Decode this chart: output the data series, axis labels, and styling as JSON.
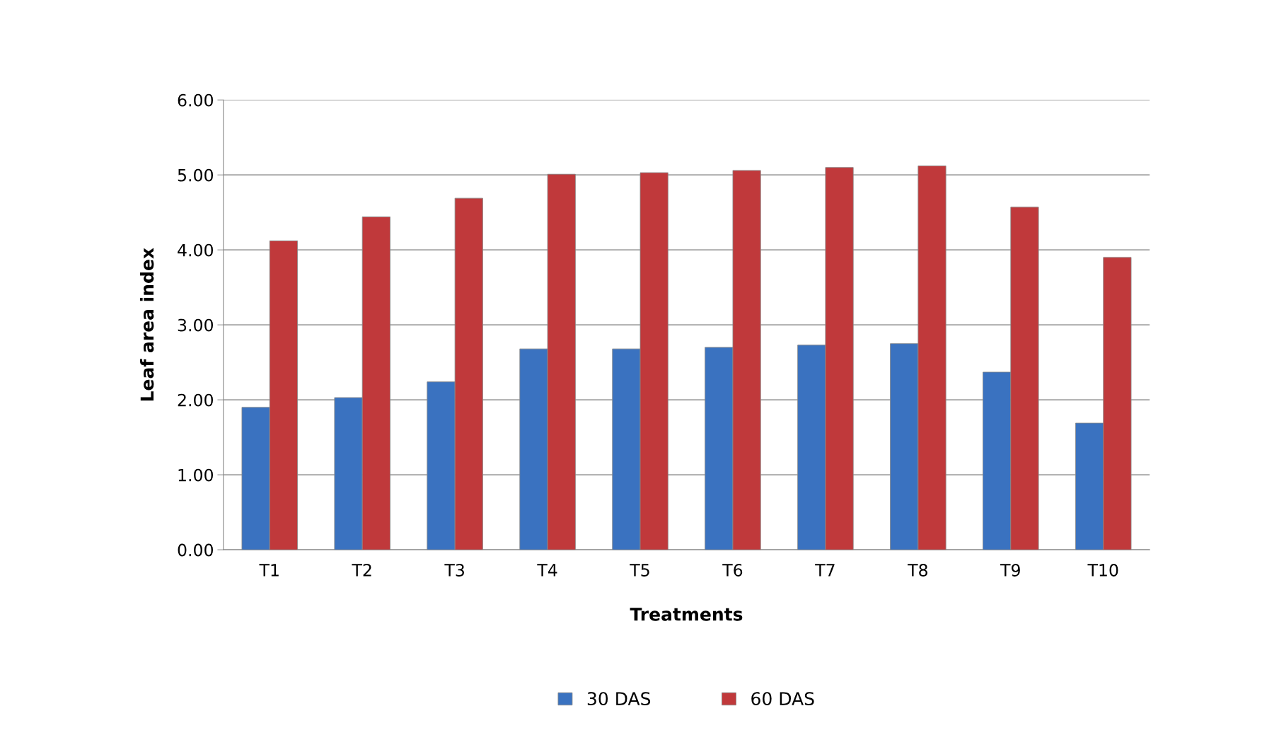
{
  "chart_data": {
    "type": "bar",
    "xlabel": "Treatments",
    "ylabel": "Leaf area index",
    "categories": [
      "T1",
      "T2",
      "T3",
      "T4",
      "T5",
      "T6",
      "T7",
      "T8",
      "T9",
      "T10"
    ],
    "series": [
      {
        "name": "30 DAS",
        "color": "#3a72c0",
        "values": [
          1.9,
          2.03,
          2.24,
          2.68,
          2.68,
          2.7,
          2.73,
          2.75,
          2.37,
          1.69
        ]
      },
      {
        "name": "60 DAS",
        "color": "#c0393b",
        "values": [
          4.12,
          4.44,
          4.69,
          5.01,
          5.03,
          5.06,
          5.1,
          5.12,
          4.57,
          3.9
        ]
      }
    ],
    "ylim": [
      0,
      6
    ],
    "yticks": [
      {
        "value": 0,
        "label": "0.00"
      },
      {
        "value": 1,
        "label": "1.00"
      },
      {
        "value": 2,
        "label": "2.00"
      },
      {
        "value": 3,
        "label": "3.00"
      },
      {
        "value": 4,
        "label": "4.00"
      },
      {
        "value": 5,
        "label": "5.00"
      },
      {
        "value": 6,
        "label": "6.00"
      }
    ],
    "grid": "y",
    "legend": "bottom"
  }
}
